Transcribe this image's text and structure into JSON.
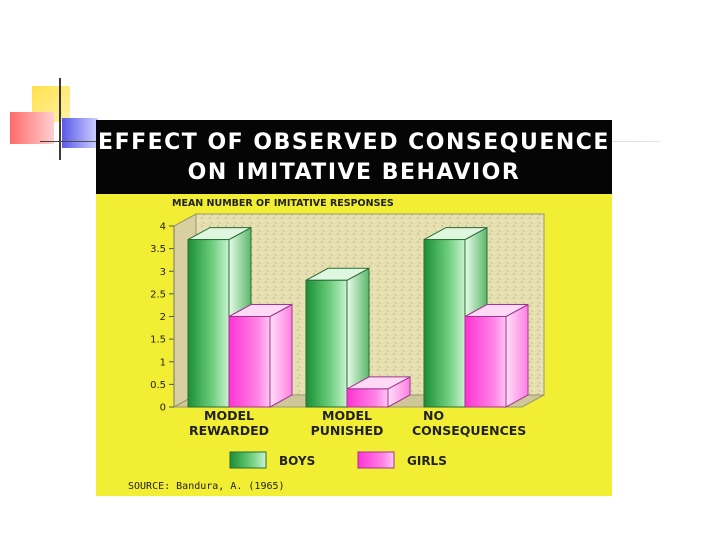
{
  "colors": {
    "boys": "#1f9a3a",
    "girls": "#ff3fd6",
    "background": "#f2ee33",
    "title_bar": "#050505",
    "plot_bg": "#e6dfb0"
  },
  "chart_data": {
    "type": "bar",
    "title_lines": [
      "EFFECT OF OBSERVED CONSEQUENCE",
      "ON IMITATIVE BEHAVIOR"
    ],
    "ylabel": "MEAN NUMBER OF IMITATIVE RESPONSES",
    "categories": [
      [
        "MODEL",
        "REWARDED"
      ],
      [
        "MODEL",
        "PUNISHED"
      ],
      [
        "NO",
        "CONSEQUENCES"
      ]
    ],
    "series": [
      {
        "name": "BOYS",
        "values": [
          3.7,
          2.8,
          3.7
        ]
      },
      {
        "name": "GIRLS",
        "values": [
          2.0,
          0.4,
          2.0
        ]
      }
    ],
    "yticks": [
      "0",
      "0.5",
      "1",
      "1.5",
      "2",
      "2.5",
      "3",
      "3.5",
      "4"
    ],
    "ylim": [
      0,
      4
    ],
    "grid": false,
    "legend_position": "bottom",
    "source": "SOURCE:  Bandura, A. (1965)"
  }
}
